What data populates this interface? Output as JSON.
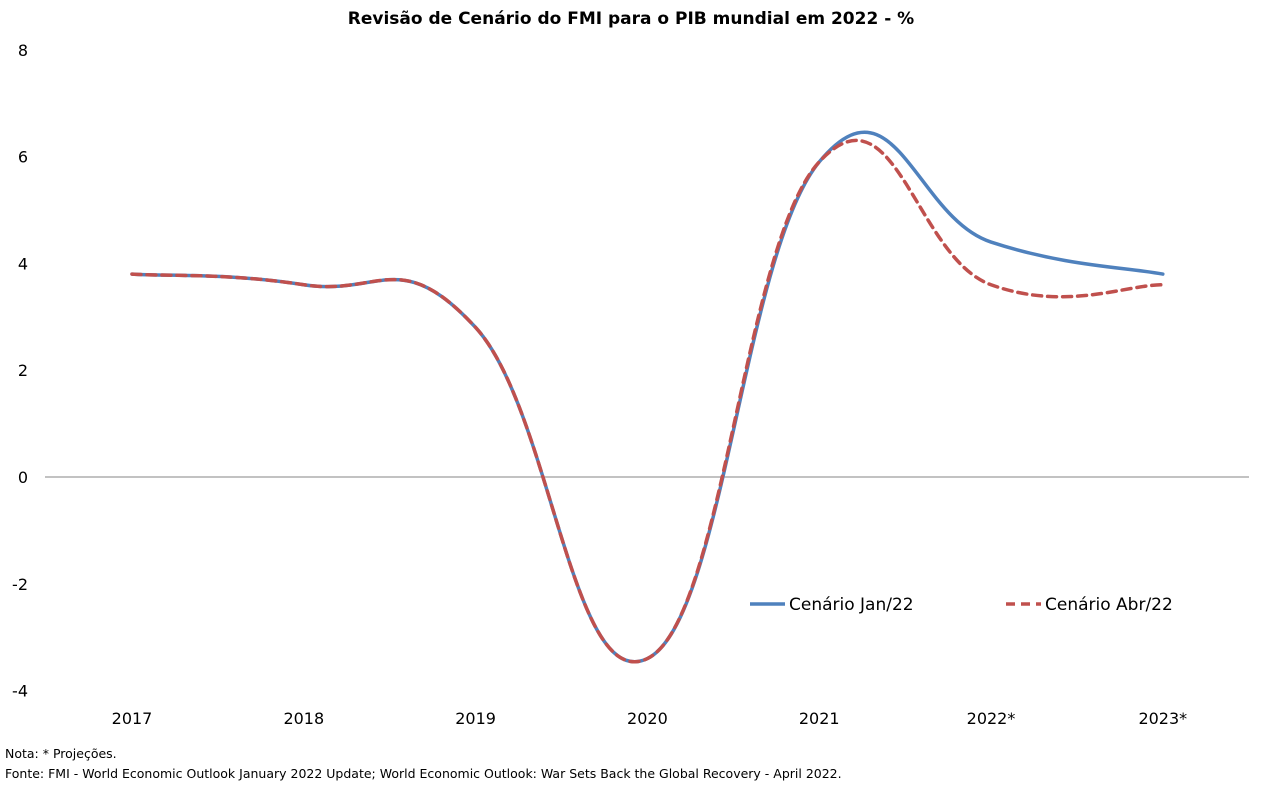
{
  "chart_data": {
    "type": "line",
    "title": "Revisão de Cenário do FMI para o PIB mundial em 2022 - %",
    "categories": [
      "2017",
      "2018",
      "2019",
      "2020",
      "2021",
      "2022*",
      "2023*"
    ],
    "series": [
      {
        "name": "Cenário Jan/22",
        "values": [
          3.8,
          3.6,
          2.8,
          -3.4,
          5.9,
          4.4,
          3.8
        ],
        "color": "#4f81bd",
        "style": "solid"
      },
      {
        "name": "Cenário Abr/22",
        "values": [
          3.8,
          3.6,
          2.8,
          -3.4,
          5.9,
          3.6,
          3.6
        ],
        "color": "#c0504d",
        "style": "dashed"
      }
    ],
    "yticks": [
      "8",
      "6",
      "4",
      "2",
      "0",
      "-2",
      "-4"
    ],
    "ylim": [
      -4,
      8
    ],
    "grid": false,
    "legend": "bottom-right"
  },
  "notes": {
    "nota": "Nota: * Projeções.",
    "fonte": "Fonte: FMI - World Economic Outlook January 2022 Update; World Economic Outlook: War Sets Back the Global Recovery - April 2022."
  }
}
